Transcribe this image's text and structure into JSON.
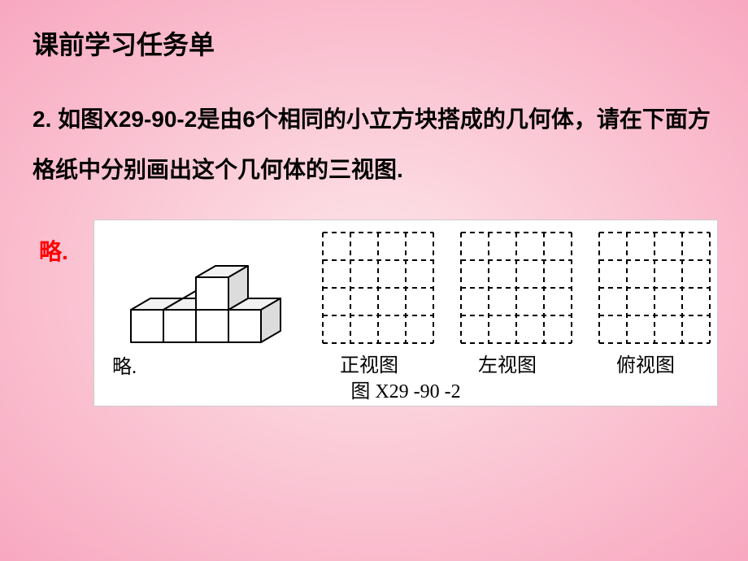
{
  "background": {
    "gradient_inner": "#fde6ea",
    "gradient_outer": "#f8a8c0"
  },
  "title": "课前学习任务单",
  "question": {
    "prefix": "2. 如图",
    "figref": "X29-90-2",
    "body": "是由6个相同的小立方块搭成的几何体，请在下面方格纸中分别画出这个几何体的三视图."
  },
  "answer_label": "略.",
  "figure": {
    "omit_text": "略.",
    "caption_prefix": "图 ",
    "caption_ref": "X29 -90 -2",
    "grid": {
      "rows": 4,
      "cols": 4,
      "cell": 34,
      "stroke": "#000000",
      "dash": "6,5",
      "stroke_width": 2
    },
    "labels": {
      "front": "正视图",
      "left": "左视图",
      "top": "俯视图"
    },
    "cubes": {
      "fill": "#ffffff",
      "fill_top": "#f2f2f2",
      "fill_side": "#dcdcdc",
      "stroke": "#000000",
      "stroke_width": 2
    }
  }
}
